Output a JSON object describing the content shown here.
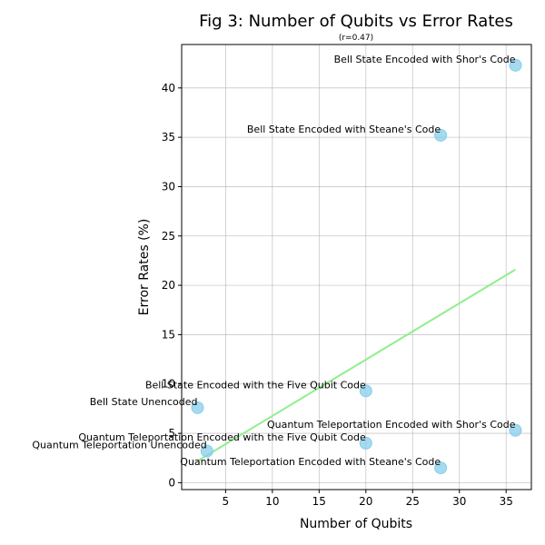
{
  "chart_data": {
    "type": "scatter",
    "title": "Fig 3: Number of Qubits vs Error Rates",
    "subtitle": "(r=0.47)",
    "xlabel": "Number of Qubits",
    "ylabel": "Error Rates (%)",
    "xlim": [
      0.3,
      37.7
    ],
    "ylim": [
      -0.7,
      44.4
    ],
    "xticks": [
      5,
      10,
      15,
      20,
      25,
      30,
      35
    ],
    "yticks": [
      0,
      5,
      10,
      15,
      20,
      25,
      30,
      35,
      40
    ],
    "grid": true,
    "marker_color": "#87ceeb",
    "trendline_color": "#90ee90",
    "trendline": {
      "x": [
        2,
        36
      ],
      "y": [
        2.2,
        21.6
      ]
    },
    "points": [
      {
        "label": "Bell State Encoded with Shor's Code",
        "x": 36,
        "y": 42.3
      },
      {
        "label": "Bell State Encoded with Steane's Code",
        "x": 28,
        "y": 35.2
      },
      {
        "label": "Bell State Encoded with the Five Qubit Code",
        "x": 20,
        "y": 9.3
      },
      {
        "label": "Bell State Unencoded",
        "x": 2,
        "y": 7.6
      },
      {
        "label": "Quantum Teleportation Encoded with Shor's Code",
        "x": 36,
        "y": 5.3
      },
      {
        "label": "Quantum Teleportation Encoded with the Five Qubit Code",
        "x": 20,
        "y": 4.0
      },
      {
        "label": "Quantum Teleportation Unencoded",
        "x": 3,
        "y": 3.2
      },
      {
        "label": "Quantum Teleportation Encoded with Steane's Code",
        "x": 28,
        "y": 1.5
      }
    ]
  }
}
